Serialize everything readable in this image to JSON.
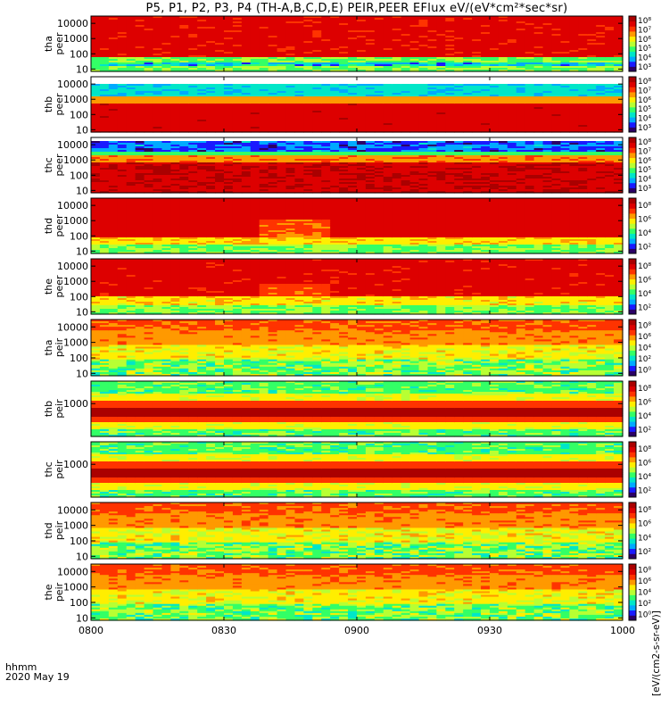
{
  "title": "P5, P1, P2, P3, P4 (TH-A,B,C,D,E) PEIR,PEER EFlux eV/(eV*cm²*sec*sr)",
  "footer": {
    "hhmm": "hhmm",
    "date": "2020 May 19"
  },
  "colorbar_unit": "[eV/(cm2-s-sr-eV)]",
  "colormap": [
    "#2b0066",
    "#1a1aff",
    "#00aaff",
    "#00e6c8",
    "#33ff66",
    "#b8ff33",
    "#ffee00",
    "#ff9900",
    "#ff3300",
    "#dd0000",
    "#aa0000"
  ],
  "chart_data": {
    "type": "heatmap",
    "x_axis": {
      "range": [
        "0800",
        "1000"
      ],
      "ticks": [
        "0800",
        "0830",
        "0900",
        "0930",
        "1000"
      ]
    },
    "panels": [
      {
        "probe": "tha",
        "product": "peer",
        "ylabel": "tha\npeer",
        "yticks": [
          "10",
          "100",
          "1000",
          "10000"
        ],
        "ylog": true,
        "yrange": [
          7,
          30000
        ],
        "cbar_ticks": [
          "10⁸",
          "10⁷",
          "10⁶",
          "10⁵",
          "10⁴",
          "10³"
        ],
        "profile": "peer_a"
      },
      {
        "probe": "thb",
        "product": "peer",
        "ylabel": "thb\npeer",
        "yticks": [
          "10",
          "100",
          "1000",
          "10000"
        ],
        "ylog": true,
        "yrange": [
          7,
          30000
        ],
        "cbar_ticks": [
          "10⁸",
          "10⁷",
          "10⁶",
          "10⁵",
          "10⁴",
          "10³"
        ],
        "profile": "peer_b"
      },
      {
        "probe": "thc",
        "product": "peer",
        "ylabel": "thc\npeer",
        "yticks": [
          "10",
          "100",
          "1000",
          "10000"
        ],
        "ylog": true,
        "yrange": [
          7,
          30000
        ],
        "cbar_ticks": [
          "10⁸",
          "10⁷",
          "10⁶",
          "10⁵",
          "10⁴",
          "10³"
        ],
        "profile": "peer_c"
      },
      {
        "probe": "thd",
        "product": "peer",
        "ylabel": "thd\npeer",
        "yticks": [
          "10",
          "100",
          "1000",
          "10000"
        ],
        "ylog": true,
        "yrange": [
          7,
          30000
        ],
        "cbar_ticks": [
          "10⁸",
          "10⁶",
          "10⁴",
          "10²"
        ],
        "profile": "peer_d"
      },
      {
        "probe": "the",
        "product": "peer",
        "ylabel": "the\npeer",
        "yticks": [
          "10",
          "100",
          "1000",
          "10000"
        ],
        "ylog": true,
        "yrange": [
          7,
          30000
        ],
        "cbar_ticks": [
          "10⁸",
          "10⁶",
          "10⁴",
          "10²"
        ],
        "profile": "peer_e"
      },
      {
        "probe": "tha",
        "product": "peir",
        "ylabel": "tha\npeir",
        "yticks": [
          "10",
          "100",
          "1000",
          "10000"
        ],
        "ylog": true,
        "yrange": [
          7,
          30000
        ],
        "cbar_ticks": [
          "10⁸",
          "10⁶",
          "10⁴",
          "10²",
          "10⁰"
        ],
        "profile": "peir"
      },
      {
        "probe": "thb",
        "product": "peir",
        "ylabel": "thb\npeir",
        "yticks": [
          "1000"
        ],
        "ylog": true,
        "yrange": [
          7,
          30000
        ],
        "cbar_ticks": [
          "10⁸",
          "10⁶",
          "10⁴",
          "10²"
        ],
        "profile": "peir_band"
      },
      {
        "probe": "thc",
        "product": "peir",
        "ylabel": "thc\npeir",
        "yticks": [
          "1000"
        ],
        "ylog": true,
        "yrange": [
          7,
          30000
        ],
        "cbar_ticks": [
          "10⁸",
          "10⁶",
          "10⁴",
          "10²"
        ],
        "profile": "peir_band"
      },
      {
        "probe": "thd",
        "product": "peir",
        "ylabel": "thd\npeir",
        "yticks": [
          "10",
          "100",
          "1000",
          "10000"
        ],
        "ylog": true,
        "yrange": [
          7,
          30000
        ],
        "cbar_ticks": [
          "10⁸",
          "10⁶",
          "10⁴",
          "10²"
        ],
        "profile": "peir"
      },
      {
        "probe": "the",
        "product": "peir",
        "ylabel": "the\npeir",
        "yticks": [
          "10",
          "100",
          "1000",
          "10000"
        ],
        "ylog": true,
        "yrange": [
          7,
          30000
        ],
        "cbar_ticks": [
          "10⁸",
          "10⁶",
          "10⁴",
          "10²",
          "10⁰"
        ],
        "profile": "peir"
      }
    ]
  }
}
